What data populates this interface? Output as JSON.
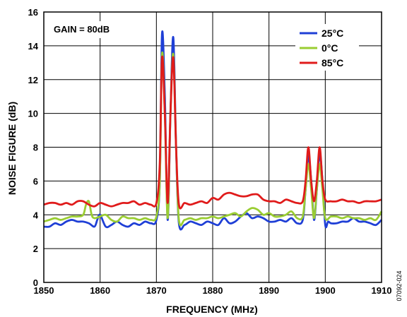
{
  "chart_data": {
    "type": "line",
    "xlabel": "FREQUENCY (MHz)",
    "ylabel": "NOISE FIGURE (dB)",
    "xlim": [
      1850,
      1910
    ],
    "ylim": [
      0,
      16
    ],
    "xticks": [
      1850,
      1860,
      1870,
      1880,
      1890,
      1900,
      1910
    ],
    "yticks": [
      0,
      2,
      4,
      6,
      8,
      10,
      12,
      14,
      16
    ],
    "grid": true,
    "legend_position": "top-right",
    "annotation": "GAIN = 80dB",
    "figure_code": "07092-024",
    "series": [
      {
        "name": "25°C",
        "color": "#1f3fd6",
        "points": [
          [
            1850,
            3.3
          ],
          [
            1851,
            3.3
          ],
          [
            1852,
            3.5
          ],
          [
            1853,
            3.4
          ],
          [
            1854,
            3.6
          ],
          [
            1855,
            3.7
          ],
          [
            1856,
            3.6
          ],
          [
            1857,
            3.6
          ],
          [
            1858,
            3.5
          ],
          [
            1859,
            3.3
          ],
          [
            1859.5,
            3.7
          ],
          [
            1860,
            4.0
          ],
          [
            1861,
            3.3
          ],
          [
            1862,
            3.4
          ],
          [
            1863,
            3.6
          ],
          [
            1864,
            3.4
          ],
          [
            1865,
            3.3
          ],
          [
            1866,
            3.5
          ],
          [
            1867,
            3.4
          ],
          [
            1868,
            3.6
          ],
          [
            1869,
            3.5
          ],
          [
            1870,
            3.7
          ],
          [
            1870.6,
            6.0
          ],
          [
            1871,
            14.7
          ],
          [
            1871.5,
            11.0
          ],
          [
            1872,
            3.7
          ],
          [
            1872.5,
            10.0
          ],
          [
            1873,
            14.5
          ],
          [
            1873.5,
            8.0
          ],
          [
            1874,
            3.5
          ],
          [
            1875,
            3.4
          ],
          [
            1876,
            3.6
          ],
          [
            1877,
            3.5
          ],
          [
            1878,
            3.4
          ],
          [
            1879,
            3.6
          ],
          [
            1880,
            3.5
          ],
          [
            1881,
            3.4
          ],
          [
            1882,
            3.8
          ],
          [
            1883,
            3.5
          ],
          [
            1884,
            3.6
          ],
          [
            1885,
            3.9
          ],
          [
            1886,
            4.1
          ],
          [
            1887,
            3.8
          ],
          [
            1888,
            3.9
          ],
          [
            1889,
            3.8
          ],
          [
            1890,
            3.6
          ],
          [
            1891,
            3.6
          ],
          [
            1892,
            3.7
          ],
          [
            1893,
            3.6
          ],
          [
            1894,
            3.8
          ],
          [
            1895,
            3.5
          ],
          [
            1896,
            3.7
          ],
          [
            1896.5,
            5.5
          ],
          [
            1897,
            7.5
          ],
          [
            1897.5,
            6.0
          ],
          [
            1898,
            3.7
          ],
          [
            1898.5,
            5.5
          ],
          [
            1899,
            7.6
          ],
          [
            1899.5,
            6.0
          ],
          [
            1900,
            3.4
          ],
          [
            1900.5,
            3.6
          ],
          [
            1901,
            3.5
          ],
          [
            1902,
            3.5
          ],
          [
            1903,
            3.6
          ],
          [
            1904,
            3.6
          ],
          [
            1905,
            3.8
          ],
          [
            1906,
            3.6
          ],
          [
            1907,
            3.6
          ],
          [
            1908,
            3.5
          ],
          [
            1909,
            3.4
          ],
          [
            1910,
            3.7
          ]
        ]
      },
      {
        "name": "0°C",
        "color": "#9acd32",
        "points": [
          [
            1850,
            3.6
          ],
          [
            1851,
            3.7
          ],
          [
            1852,
            3.8
          ],
          [
            1853,
            3.7
          ],
          [
            1854,
            3.8
          ],
          [
            1855,
            3.9
          ],
          [
            1856,
            3.9
          ],
          [
            1857,
            4.0
          ],
          [
            1857.5,
            4.6
          ],
          [
            1858,
            4.8
          ],
          [
            1858.5,
            4.0
          ],
          [
            1859,
            3.8
          ],
          [
            1860,
            3.9
          ],
          [
            1861,
            4.0
          ],
          [
            1862,
            3.7
          ],
          [
            1863,
            3.6
          ],
          [
            1864,
            3.9
          ],
          [
            1865,
            3.8
          ],
          [
            1866,
            3.8
          ],
          [
            1867,
            3.7
          ],
          [
            1868,
            3.8
          ],
          [
            1869,
            3.7
          ],
          [
            1870,
            3.9
          ],
          [
            1870.6,
            6.0
          ],
          [
            1871,
            13.5
          ],
          [
            1871.5,
            10.0
          ],
          [
            1872,
            3.8
          ],
          [
            1872.5,
            10.0
          ],
          [
            1873,
            13.5
          ],
          [
            1873.5,
            8.0
          ],
          [
            1874,
            3.7
          ],
          [
            1875,
            3.7
          ],
          [
            1876,
            3.8
          ],
          [
            1877,
            3.7
          ],
          [
            1878,
            3.8
          ],
          [
            1879,
            3.8
          ],
          [
            1880,
            3.9
          ],
          [
            1881,
            3.8
          ],
          [
            1882,
            3.9
          ],
          [
            1883,
            4.0
          ],
          [
            1884,
            4.1
          ],
          [
            1885,
            3.9
          ],
          [
            1886,
            4.2
          ],
          [
            1887,
            4.4
          ],
          [
            1888,
            4.3
          ],
          [
            1889,
            4.0
          ],
          [
            1890,
            4.1
          ],
          [
            1891,
            3.9
          ],
          [
            1892,
            3.9
          ],
          [
            1893,
            4.0
          ],
          [
            1894,
            4.2
          ],
          [
            1895,
            3.8
          ],
          [
            1896,
            3.9
          ],
          [
            1896.5,
            5.5
          ],
          [
            1897,
            7.0
          ],
          [
            1897.5,
            5.5
          ],
          [
            1898,
            3.8
          ],
          [
            1898.5,
            5.5
          ],
          [
            1899,
            7.0
          ],
          [
            1899.5,
            5.5
          ],
          [
            1900,
            3.8
          ],
          [
            1901,
            3.9
          ],
          [
            1902,
            3.9
          ],
          [
            1903,
            3.8
          ],
          [
            1904,
            3.9
          ],
          [
            1905,
            3.8
          ],
          [
            1906,
            3.8
          ],
          [
            1907,
            3.7
          ],
          [
            1908,
            3.8
          ],
          [
            1909,
            3.7
          ],
          [
            1910,
            4.2
          ]
        ]
      },
      {
        "name": "85°C",
        "color": "#e01b1b",
        "points": [
          [
            1850,
            4.6
          ],
          [
            1851,
            4.7
          ],
          [
            1852,
            4.7
          ],
          [
            1853,
            4.6
          ],
          [
            1854,
            4.7
          ],
          [
            1855,
            4.6
          ],
          [
            1856,
            4.8
          ],
          [
            1857,
            4.8
          ],
          [
            1858,
            4.6
          ],
          [
            1859,
            4.5
          ],
          [
            1860,
            4.7
          ],
          [
            1861,
            4.6
          ],
          [
            1862,
            4.5
          ],
          [
            1863,
            4.6
          ],
          [
            1864,
            4.7
          ],
          [
            1865,
            4.7
          ],
          [
            1866,
            4.8
          ],
          [
            1867,
            4.6
          ],
          [
            1868,
            4.7
          ],
          [
            1869,
            4.6
          ],
          [
            1870,
            4.7
          ],
          [
            1870.6,
            7.0
          ],
          [
            1871,
            13.3
          ],
          [
            1871.5,
            10.0
          ],
          [
            1872,
            4.7
          ],
          [
            1872.5,
            10.0
          ],
          [
            1873,
            13.3
          ],
          [
            1873.5,
            8.0
          ],
          [
            1874,
            4.6
          ],
          [
            1875,
            4.7
          ],
          [
            1876,
            4.6
          ],
          [
            1877,
            4.7
          ],
          [
            1878,
            4.8
          ],
          [
            1879,
            4.7
          ],
          [
            1880,
            5.0
          ],
          [
            1881,
            4.9
          ],
          [
            1882,
            5.2
          ],
          [
            1883,
            5.3
          ],
          [
            1884,
            5.2
          ],
          [
            1885,
            5.1
          ],
          [
            1886,
            5.1
          ],
          [
            1887,
            5.2
          ],
          [
            1888,
            5.2
          ],
          [
            1889,
            4.9
          ],
          [
            1890,
            4.8
          ],
          [
            1891,
            4.8
          ],
          [
            1892,
            4.7
          ],
          [
            1893,
            4.9
          ],
          [
            1894,
            4.8
          ],
          [
            1895,
            4.7
          ],
          [
            1896,
            4.8
          ],
          [
            1896.5,
            6.0
          ],
          [
            1897,
            8.0
          ],
          [
            1897.5,
            6.0
          ],
          [
            1898,
            4.8
          ],
          [
            1898.5,
            6.0
          ],
          [
            1899,
            8.0
          ],
          [
            1899.5,
            6.0
          ],
          [
            1900,
            4.9
          ],
          [
            1901,
            4.8
          ],
          [
            1902,
            4.8
          ],
          [
            1903,
            4.9
          ],
          [
            1904,
            4.8
          ],
          [
            1905,
            4.8
          ],
          [
            1906,
            4.7
          ],
          [
            1907,
            4.8
          ],
          [
            1908,
            4.8
          ],
          [
            1909,
            4.8
          ],
          [
            1910,
            4.9
          ]
        ]
      }
    ]
  }
}
